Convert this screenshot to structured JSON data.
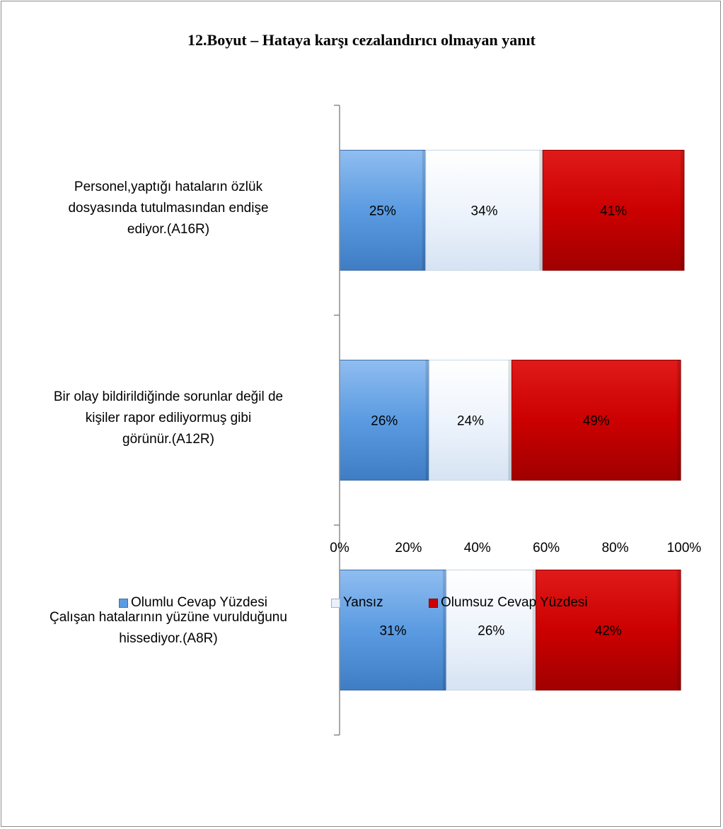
{
  "chart_data": {
    "type": "bar",
    "orientation": "horizontal",
    "stacked": true,
    "title": "12.Boyut – Hataya karşı cezalandırıcı olmayan yanıt",
    "categories": [
      [
        "Personel,yaptığı hataların özlük",
        "dosyasında tutulmasından endişe",
        "ediyor.(A16R)"
      ],
      [
        "Bir olay bildirildiğinde sorunlar değil de",
        "kişiler rapor ediliyormuş gibi",
        "görünür.(A12R)"
      ],
      [
        "Çalışan hatalarının yüzüne vurulduğunu",
        "hissediyor.(A8R)"
      ]
    ],
    "series": [
      {
        "name": "Olumlu Cevap Yüzdesi",
        "values": [
          25,
          26,
          31
        ],
        "labels": [
          "25%",
          "26%",
          "31%"
        ],
        "color": "#5b9be1"
      },
      {
        "name": "Yansız",
        "values": [
          34,
          24,
          26
        ],
        "labels": [
          "34%",
          "24%",
          "26%"
        ],
        "color": "#e9f1fb"
      },
      {
        "name": "Olumsuz Cevap Yüzdesi",
        "values": [
          41,
          49,
          42
        ],
        "labels": [
          "41%",
          "49%",
          "42%"
        ],
        "color": "#cc0000"
      }
    ],
    "xlim": [
      0,
      100
    ],
    "xticks": [
      0,
      20,
      40,
      60,
      80,
      100
    ],
    "xtick_labels": [
      "0%",
      "20%",
      "40%",
      "60%",
      "80%",
      "100%"
    ],
    "legend_position": "bottom",
    "grid": false
  }
}
